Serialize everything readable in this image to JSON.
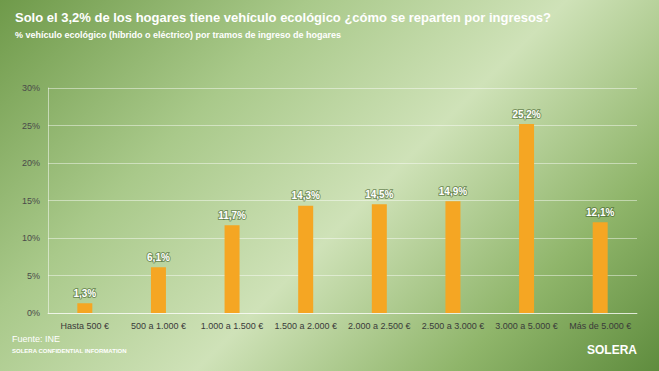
{
  "chart_data": {
    "type": "bar",
    "title": "Solo el 3,2% de los hogares tiene vehículo ecológico ¿cómo se reparten por ingresos?",
    "subtitle": "% vehículo ecológico (híbrido o eléctrico) por tramos de ingreso de hogares",
    "categories": [
      "Hasta 500 €",
      "500 a 1.000 €",
      "1.000 a 1.500 €",
      "1.500 a 2.000 €",
      "2.000 a 2.500 €",
      "2.500 a 3.000 €",
      "3.000 a 5.000 €",
      "Más de 5.000 €"
    ],
    "values": [
      1.3,
      6.1,
      11.7,
      14.3,
      14.5,
      14.9,
      25.2,
      12.1
    ],
    "value_labels": [
      "1,3%",
      "6,1%",
      "11,7%",
      "14,3%",
      "14,5%",
      "14,9%",
      "25,2%",
      "12,1%"
    ],
    "color": "#f5a623",
    "ylim": [
      0,
      30
    ],
    "yticks": [
      {
        "value": 0,
        "label": "0%"
      },
      {
        "value": 5,
        "label": "5%"
      },
      {
        "value": 10,
        "label": "10%"
      },
      {
        "value": 15,
        "label": "15%"
      },
      {
        "value": 20,
        "label": "20%"
      },
      {
        "value": 25,
        "label": "25%"
      },
      {
        "value": 30,
        "label": "30%"
      }
    ],
    "grid": true,
    "data_labels": true
  },
  "source": "Fuente: INE",
  "note": "SOLERA CONFIDENTIAL INFORMATION",
  "logo": "SOLERA"
}
